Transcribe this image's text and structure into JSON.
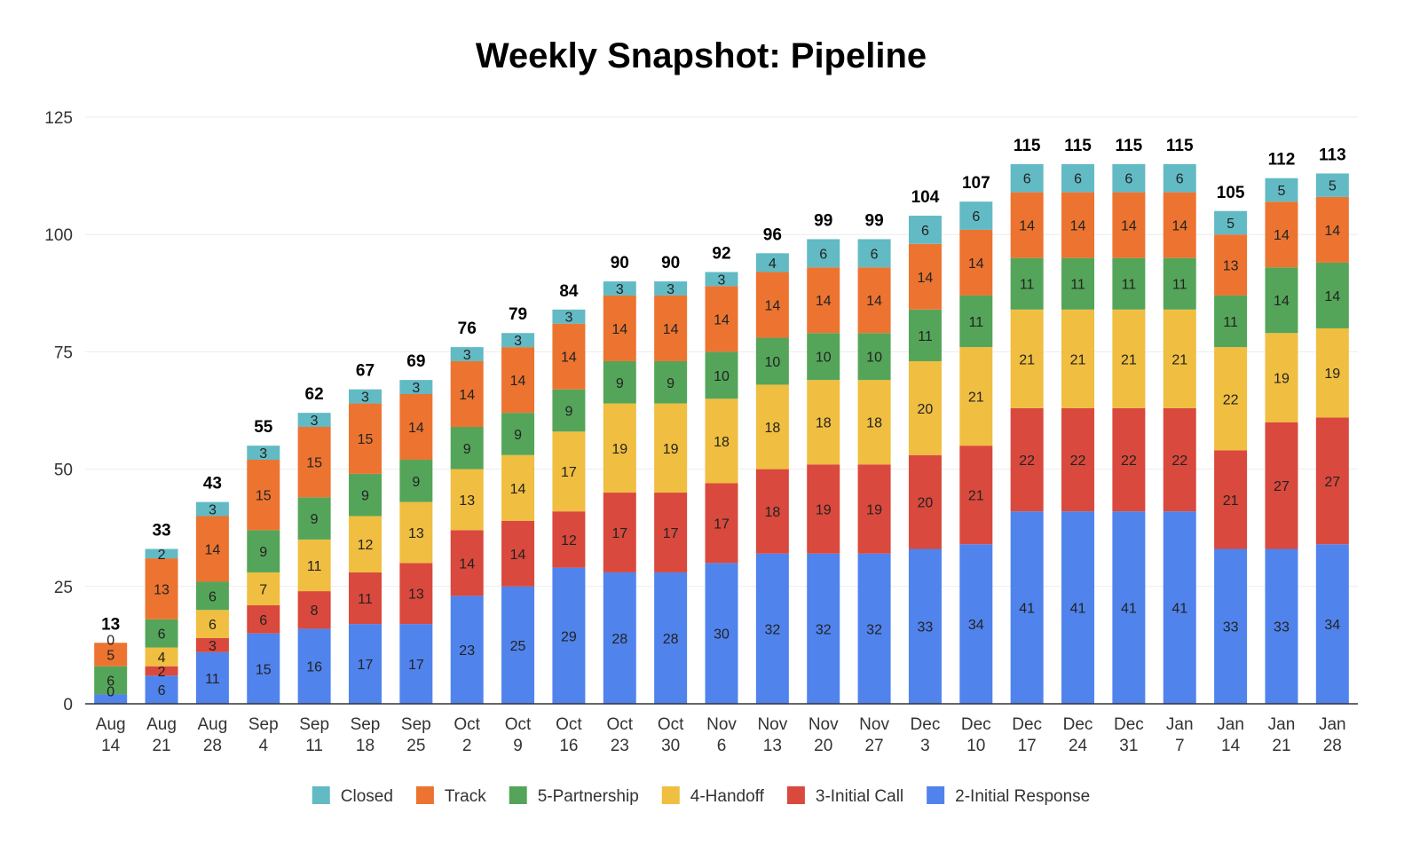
{
  "chart_data": {
    "type": "bar",
    "stacked": true,
    "title": "Weekly Snapshot: Pipeline",
    "xlabel": "",
    "ylabel": "",
    "ylim": [
      0,
      125
    ],
    "yticks": [
      0,
      25,
      50,
      75,
      100,
      125
    ],
    "grid": true,
    "legend_position": "bottom",
    "categories": [
      [
        "Aug",
        "14"
      ],
      [
        "Aug",
        "21"
      ],
      [
        "Aug",
        "28"
      ],
      [
        "Sep",
        "4"
      ],
      [
        "Sep",
        "11"
      ],
      [
        "Sep",
        "18"
      ],
      [
        "Sep",
        "25"
      ],
      [
        "Oct",
        "2"
      ],
      [
        "Oct",
        "9"
      ],
      [
        "Oct",
        "16"
      ],
      [
        "Oct",
        "23"
      ],
      [
        "Oct",
        "30"
      ],
      [
        "Nov",
        "6"
      ],
      [
        "Nov",
        "13"
      ],
      [
        "Nov",
        "20"
      ],
      [
        "Nov",
        "27"
      ],
      [
        "Dec",
        "3"
      ],
      [
        "Dec",
        "10"
      ],
      [
        "Dec",
        "17"
      ],
      [
        "Dec",
        "24"
      ],
      [
        "Dec",
        "31"
      ],
      [
        "Jan",
        "7"
      ],
      [
        "Jan",
        "14"
      ],
      [
        "Jan",
        "21"
      ],
      [
        "Jan",
        "28"
      ]
    ],
    "totals": [
      13,
      33,
      43,
      55,
      62,
      67,
      69,
      76,
      79,
      84,
      90,
      90,
      92,
      96,
      99,
      99,
      104,
      107,
      115,
      115,
      115,
      115,
      105,
      112,
      113
    ],
    "series": [
      {
        "name": "2-Initial Response",
        "color": "#5083ec",
        "values": [
          2,
          6,
          11,
          15,
          16,
          17,
          17,
          23,
          25,
          29,
          28,
          28,
          30,
          32,
          32,
          32,
          33,
          34,
          41,
          41,
          41,
          41,
          33,
          33,
          34
        ],
        "labels": [
          "",
          "6",
          "11",
          "15",
          "16",
          "17",
          "17",
          "23",
          "25",
          "29",
          "28",
          "28",
          "30",
          "32",
          "32",
          "32",
          "33",
          "34",
          "41",
          "41",
          "41",
          "41",
          "33",
          "33",
          "34"
        ]
      },
      {
        "name": "3-Initial Call",
        "color": "#d9493d",
        "values": [
          0,
          2,
          3,
          6,
          8,
          11,
          13,
          14,
          14,
          12,
          17,
          17,
          17,
          18,
          19,
          19,
          20,
          21,
          22,
          22,
          22,
          22,
          21,
          27,
          27
        ],
        "labels": [
          "",
          "2",
          "3",
          "6",
          "8",
          "11",
          "13",
          "14",
          "14",
          "12",
          "17",
          "17",
          "17",
          "18",
          "19",
          "19",
          "20",
          "21",
          "22",
          "22",
          "22",
          "22",
          "21",
          "27",
          "27"
        ]
      },
      {
        "name": "4-Handoff",
        "color": "#f0be40",
        "values": [
          0,
          4,
          6,
          7,
          11,
          12,
          13,
          13,
          14,
          17,
          19,
          19,
          18,
          18,
          18,
          18,
          20,
          21,
          21,
          21,
          21,
          21,
          22,
          19,
          19
        ],
        "labels": [
          "0",
          "4",
          "6",
          "7",
          "11",
          "12",
          "13",
          "13",
          "14",
          "17",
          "19",
          "19",
          "18",
          "18",
          "18",
          "18",
          "20",
          "21",
          "21",
          "21",
          "21",
          "21",
          "22",
          "19",
          "19"
        ]
      },
      {
        "name": "5-Partnership",
        "color": "#54a559",
        "values": [
          6,
          6,
          6,
          9,
          9,
          9,
          9,
          9,
          9,
          9,
          9,
          9,
          10,
          10,
          10,
          10,
          11,
          11,
          11,
          11,
          11,
          11,
          11,
          14,
          14
        ],
        "labels": [
          "6",
          "6",
          "6",
          "9",
          "9",
          "9",
          "9",
          "9",
          "9",
          "9",
          "9",
          "9",
          "10",
          "10",
          "10",
          "10",
          "11",
          "11",
          "11",
          "11",
          "11",
          "11",
          "11",
          "14",
          "14"
        ]
      },
      {
        "name": "Track",
        "color": "#ec7430",
        "values": [
          5,
          13,
          14,
          15,
          15,
          15,
          14,
          14,
          14,
          14,
          14,
          14,
          14,
          14,
          14,
          14,
          14,
          14,
          14,
          14,
          14,
          14,
          13,
          14,
          14
        ],
        "labels": [
          "5",
          "13",
          "14",
          "15",
          "15",
          "15",
          "14",
          "14",
          "14",
          "14",
          "14",
          "14",
          "14",
          "14",
          "14",
          "14",
          "14",
          "14",
          "14",
          "14",
          "14",
          "14",
          "13",
          "14",
          "14"
        ]
      },
      {
        "name": "Closed",
        "color": "#62bac4",
        "values": [
          0,
          2,
          3,
          3,
          3,
          3,
          3,
          3,
          3,
          3,
          3,
          3,
          3,
          4,
          6,
          6,
          6,
          6,
          6,
          6,
          6,
          6,
          5,
          5,
          5
        ],
        "labels": [
          "0",
          "2",
          "3",
          "3",
          "3",
          "3",
          "3",
          "3",
          "3",
          "3",
          "3",
          "3",
          "3",
          "4",
          "6",
          "6",
          "6",
          "6",
          "6",
          "6",
          "6",
          "6",
          "5",
          "5",
          "5"
        ]
      }
    ],
    "legend_order": [
      "Closed",
      "Track",
      "5-Partnership",
      "4-Handoff",
      "3-Initial Call",
      "2-Initial Response"
    ]
  }
}
